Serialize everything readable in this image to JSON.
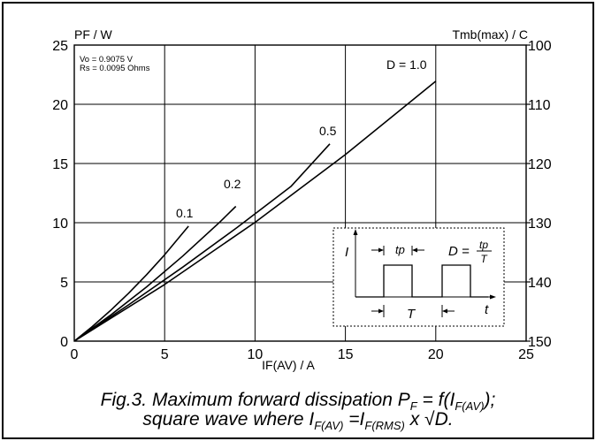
{
  "chart_data": {
    "type": "line",
    "ylabel_left": "PF / W",
    "ylabel_right": "Tmb(max) / C",
    "xlabel": "IF(AV) / A",
    "xlim": [
      0,
      25
    ],
    "ylim": [
      0,
      25
    ],
    "y2lim": [
      100,
      150
    ],
    "x_ticks": [
      "0",
      "5",
      "10",
      "15",
      "20",
      "25"
    ],
    "y_ticks": [
      "0",
      "5",
      "10",
      "15",
      "20",
      "25"
    ],
    "y2_ticks": [
      "100",
      "110",
      "120",
      "130",
      "140",
      "150"
    ],
    "grid": true,
    "params_text": [
      "Vo = 0.9075 V",
      "Rs = 0.0095 Ohms"
    ],
    "series": [
      {
        "name": "0.1",
        "x": [
          0,
          1,
          2,
          3,
          4,
          5,
          6.32
        ],
        "y": [
          0,
          1.23,
          2.58,
          4.04,
          5.61,
          7.29,
          9.71
        ]
      },
      {
        "name": "0.2",
        "x": [
          0,
          2,
          4,
          6,
          8,
          8.94
        ],
        "y": [
          0,
          2.19,
          4.58,
          7.18,
          9.98,
          11.38
        ]
      },
      {
        "name": "0.5",
        "x": [
          0,
          3,
          6,
          9,
          12,
          14.14
        ],
        "y": [
          0,
          3.06,
          6.25,
          9.59,
          13.08,
          16.66
        ]
      },
      {
        "name": "D = 1.0",
        "x": [
          0,
          5,
          10,
          15,
          20
        ],
        "y": [
          0,
          4.78,
          10.03,
          15.75,
          21.95
        ]
      }
    ]
  },
  "inset": {
    "axis_i": "I",
    "axis_t": "t",
    "tp": "tp",
    "period": "T",
    "formula_lhs": "D =",
    "formula_num": "tp",
    "formula_den": "T"
  },
  "caption": {
    "line1_pre": "Fig.3.   Maximum forward dissipation P",
    "line1_sub1": "F",
    "line1_mid": " = f(I",
    "line1_sub2": "F(AV)",
    "line1_post": ");",
    "line2_pre": "square wave where I",
    "line2_sub1": "F(AV)",
    "line2_mid": " =I",
    "line2_sub2": "F(RMS)",
    "line2_post": " x √D."
  }
}
